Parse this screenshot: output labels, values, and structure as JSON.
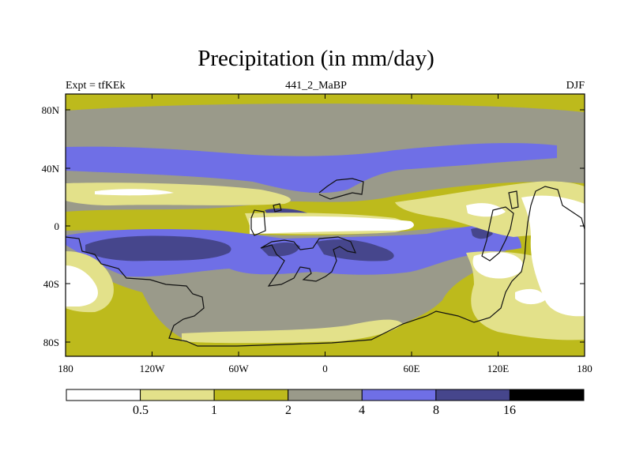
{
  "title": "Precipitation (in mm/day)",
  "subtitle_left": "Expt = tfKEk",
  "subtitle_center": "441_2_MaBP",
  "subtitle_right": "DJF",
  "axes": {
    "x_ticks": [
      "180",
      "120W",
      "60W",
      "0",
      "60E",
      "120E",
      "180"
    ],
    "y_ticks": [
      "80N",
      "40N",
      "0",
      "40S",
      "80S"
    ]
  },
  "colorbar": {
    "labels": [
      "0.5",
      "1",
      "2",
      "4",
      "8",
      "16"
    ],
    "colors": [
      "#ffffff",
      "#e3e18a",
      "#bdba1c",
      "#9a9a8a",
      "#6f6fe6",
      "#46468c",
      "#000000"
    ]
  },
  "palette": {
    "lt1": "#ffffff",
    "c05_1": "#e3e18a",
    "c1_2": "#bdba1c",
    "c2_4": "#9a9a8a",
    "c4_8": "#6f6fe6",
    "c8_16": "#46468c"
  }
}
